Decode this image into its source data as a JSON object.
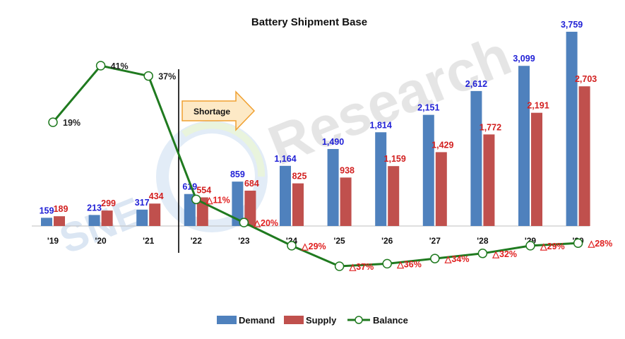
{
  "chart_data": {
    "type": "bar",
    "title": "Battery Shipment Base",
    "categories": [
      "'19",
      "'20",
      "'21",
      "'22",
      "'23",
      "'24",
      "'25",
      "'26",
      "'27",
      "'28",
      "'29",
      "'30"
    ],
    "series": [
      {
        "name": "Demand",
        "kind": "bar",
        "color": "#4f81bd",
        "values": [
          159,
          213,
          317,
          619,
          859,
          1164,
          1490,
          1814,
          2151,
          2612,
          3099,
          3759
        ],
        "labels": [
          "159",
          "213",
          "317",
          "619",
          "859",
          "1,164",
          "1,490",
          "1,814",
          "2,151",
          "2,612",
          "3,099",
          "3,759"
        ]
      },
      {
        "name": "Supply",
        "kind": "bar",
        "color": "#c0504d",
        "values": [
          189,
          299,
          434,
          554,
          684,
          825,
          938,
          1159,
          1429,
          1772,
          2191,
          2703
        ],
        "labels": [
          "189",
          "299",
          "434",
          "554",
          "684",
          "825",
          "938",
          "1,159",
          "1,429",
          "1,772",
          "2,191",
          "2,703"
        ]
      },
      {
        "name": "Balance",
        "kind": "line",
        "color": "#1f7a1f",
        "values": [
          19,
          41,
          37,
          -11,
          -20,
          -29,
          -37,
          -36,
          -34,
          -32,
          -29,
          -28
        ],
        "labels": [
          "19%",
          "41%",
          "37%",
          "△11%",
          "△20%",
          "△29%",
          "△37%",
          "△36%",
          "△34%",
          "△32%",
          "△29%",
          "△28%"
        ]
      }
    ],
    "bar_ylim": [
      0,
      4100
    ],
    "line_ylim": [
      -45,
      50
    ],
    "annotation": {
      "text": "Shortage",
      "fill": "#fde9c6",
      "stroke": "#f0a030"
    },
    "divider_after_category": "'21",
    "legend": {
      "position": "bottom-center",
      "items": [
        "Demand",
        "Supply",
        "Balance"
      ]
    },
    "watermark": "SNE Research",
    "grid": false
  }
}
